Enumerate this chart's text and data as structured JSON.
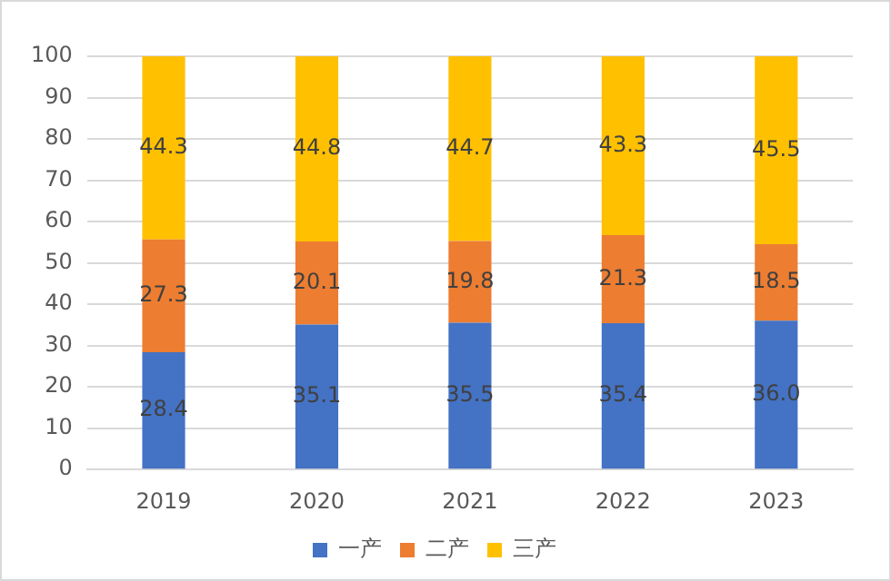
{
  "chart_data": {
    "type": "bar",
    "stacked": true,
    "categories": [
      "2019",
      "2020",
      "2021",
      "2022",
      "2023"
    ],
    "series": [
      {
        "name": "一产",
        "color": "#4472c4",
        "values": [
          28.4,
          35.1,
          35.5,
          35.4,
          36.0
        ],
        "value_labels": [
          "28.4",
          "35.1",
          "35.5",
          "35.4",
          "36.0"
        ]
      },
      {
        "name": "二产",
        "color": "#ed7d31",
        "values": [
          27.3,
          20.1,
          19.8,
          21.3,
          18.5
        ],
        "value_labels": [
          "27.3",
          "20.1",
          "19.8",
          "21.3",
          "18.5"
        ]
      },
      {
        "name": "三产",
        "color": "#ffc000",
        "values": [
          44.3,
          44.8,
          44.7,
          43.3,
          45.5
        ],
        "value_labels": [
          "44.3",
          "44.8",
          "44.7",
          "43.3",
          "45.5"
        ]
      }
    ],
    "ylim": [
      0,
      100
    ],
    "yticks": [
      0,
      10,
      20,
      30,
      40,
      50,
      60,
      70,
      80,
      90,
      100
    ],
    "grid": "y",
    "legend": "bottom"
  }
}
